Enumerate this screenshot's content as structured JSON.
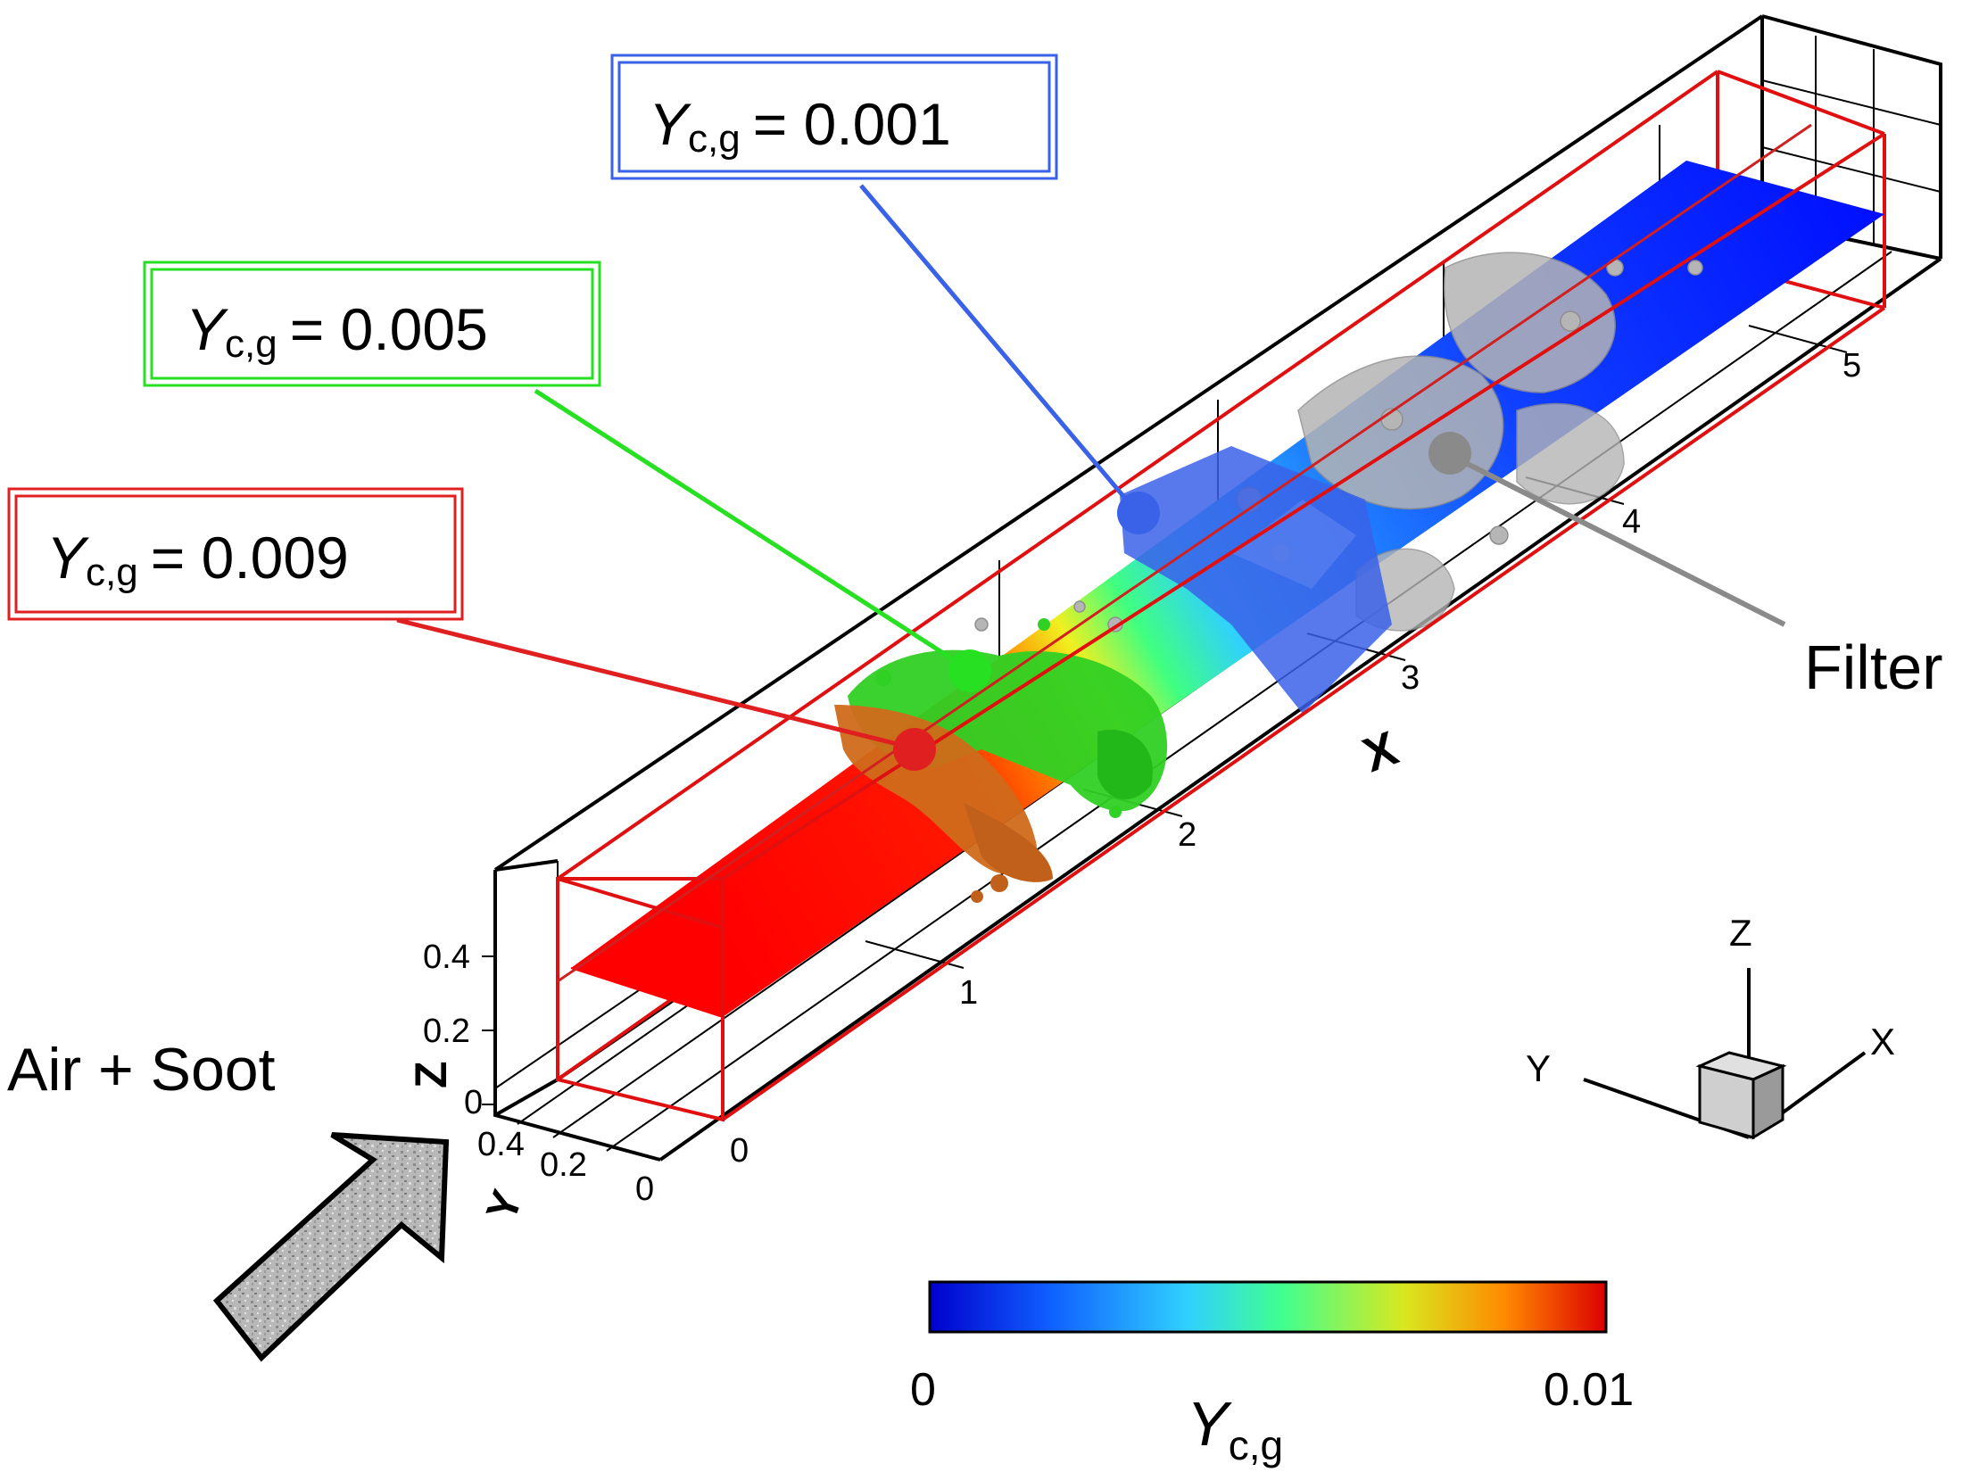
{
  "labels": {
    "blue": {
      "sym": "Y",
      "sub": "c,g",
      "eq": "= 0.001",
      "color": "#3a62e8"
    },
    "green": {
      "sym": "Y",
      "sub": "c,g",
      "eq": "= 0.005",
      "color": "#27e022"
    },
    "red": {
      "sym": "Y",
      "sub": "c,g",
      "eq": "= 0.009",
      "color": "#e02020"
    },
    "filter": "Filter",
    "inlet": "Air + Soot"
  },
  "axes": {
    "x_label": "X",
    "y_label": "Y",
    "z_label": "Z",
    "x_ticks": [
      "0",
      "1",
      "2",
      "3",
      "4",
      "5"
    ],
    "y_ticks": [
      "0.4",
      "0.2",
      "0"
    ],
    "z_ticks": [
      "0.4",
      "0.2",
      "0"
    ]
  },
  "triad": {
    "x": "X",
    "y": "Y",
    "z": "Z"
  },
  "colorbar": {
    "min_label": "0",
    "max_label": "0.01",
    "title_sym": "Y",
    "title_sub": "c,g",
    "range": [
      0,
      0.01
    ],
    "colors": [
      "#0000cc",
      "#1060ff",
      "#30d0ff",
      "#40ff90",
      "#d8e820",
      "#ff8a00",
      "#dd0000"
    ]
  }
}
